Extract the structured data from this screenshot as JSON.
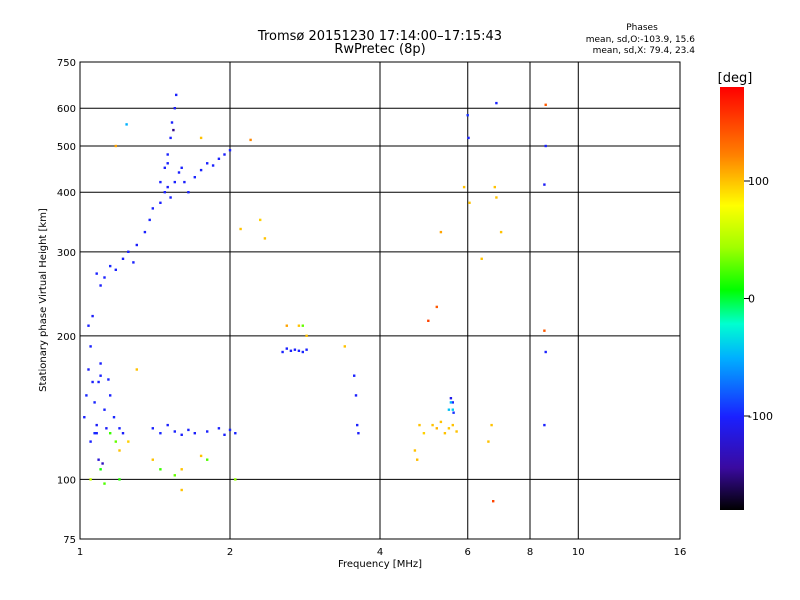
{
  "chart_data": {
    "type": "scatter",
    "title": "Tromsø 20151230 17:14:00–17:15:43",
    "subtitle": "RwPretec (8p)",
    "xlabel": "Frequency [MHz]",
    "ylabel": "Stationary phase Virtual Height [km]",
    "x_scale": "log2",
    "y_scale": "log",
    "xlim": [
      1,
      16
    ],
    "ylim": [
      75,
      750
    ],
    "x_ticks": [
      "1",
      "2",
      "4",
      "6",
      "8",
      "10",
      "16"
    ],
    "y_ticks": [
      "75",
      "100",
      "200",
      "300",
      "400",
      "500",
      "600",
      "750"
    ],
    "grid": true,
    "stats_title": "Phases",
    "stats": [
      "mean, sd,O:-103.9, 15.6",
      "mean, sd,X: 79.4, 23.4"
    ],
    "colorbar": {
      "label": "[deg]",
      "range": [
        -180,
        180
      ],
      "ticks": [
        "100",
        "0",
        "-100"
      ],
      "tick_values": [
        100,
        0,
        -100
      ]
    },
    "series": [
      {
        "points": [
          [
            1.02,
            135,
            -100
          ],
          [
            1.03,
            150,
            -98
          ],
          [
            1.04,
            170,
            -105
          ],
          [
            1.05,
            190,
            -100
          ],
          [
            1.06,
            160,
            -102
          ],
          [
            1.07,
            145,
            -99
          ],
          [
            1.08,
            130,
            -103
          ],
          [
            1.09,
            160,
            -100
          ],
          [
            1.1,
            175,
            -101
          ],
          [
            1.12,
            140,
            -100
          ],
          [
            1.13,
            128,
            -104
          ],
          [
            1.15,
            150,
            -100
          ],
          [
            1.17,
            135,
            -98
          ],
          [
            1.2,
            128,
            -100
          ],
          [
            1.22,
            125,
            -102
          ],
          [
            1.05,
            120,
            -100
          ],
          [
            1.07,
            125,
            -97
          ],
          [
            1.1,
            165,
            -101
          ],
          [
            1.14,
            162,
            -99
          ],
          [
            1.04,
            210,
            -100
          ],
          [
            1.06,
            220,
            -103
          ],
          [
            1.08,
            125,
            -100
          ],
          [
            1.09,
            110,
            -120
          ],
          [
            1.11,
            108,
            -130
          ],
          [
            1.4,
            128,
            -100
          ],
          [
            1.45,
            125,
            -98
          ],
          [
            1.5,
            130,
            -101
          ],
          [
            1.55,
            126,
            -100
          ],
          [
            1.6,
            124,
            -102
          ],
          [
            1.65,
            127,
            -100
          ],
          [
            1.7,
            125,
            -103
          ],
          [
            1.8,
            126,
            -100
          ],
          [
            1.9,
            128,
            -100
          ],
          [
            1.95,
            124,
            -101
          ],
          [
            2.0,
            127,
            -100
          ],
          [
            2.05,
            125,
            -99
          ],
          [
            1.08,
            270,
            -100
          ],
          [
            1.1,
            255,
            -102
          ],
          [
            1.12,
            265,
            -100
          ],
          [
            1.15,
            280,
            -98
          ],
          [
            1.18,
            275,
            -100
          ],
          [
            1.22,
            290,
            -101
          ],
          [
            1.25,
            300,
            -100
          ],
          [
            1.28,
            285,
            -100
          ],
          [
            1.3,
            310,
            -102
          ],
          [
            1.35,
            330,
            -100
          ],
          [
            1.38,
            350,
            -99
          ],
          [
            1.4,
            370,
            -100
          ],
          [
            1.45,
            380,
            -101
          ],
          [
            1.48,
            400,
            -100
          ],
          [
            1.5,
            410,
            -103
          ],
          [
            1.52,
            390,
            -100
          ],
          [
            1.55,
            420,
            -100
          ],
          [
            1.58,
            440,
            -101
          ],
          [
            1.6,
            450,
            -100
          ],
          [
            1.62,
            420,
            -102
          ],
          [
            1.65,
            400,
            -100
          ],
          [
            1.7,
            430,
            -99
          ],
          [
            1.75,
            445,
            -100
          ],
          [
            1.8,
            460,
            -101
          ],
          [
            1.85,
            455,
            -100
          ],
          [
            1.9,
            470,
            -100
          ],
          [
            1.95,
            480,
            -102
          ],
          [
            2.0,
            490,
            -100
          ],
          [
            1.5,
            480,
            -100
          ],
          [
            1.52,
            520,
            -101
          ],
          [
            1.53,
            560,
            -100
          ],
          [
            1.55,
            600,
            -105
          ],
          [
            1.56,
            640,
            -100
          ],
          [
            1.54,
            540,
            -150
          ],
          [
            1.5,
            460,
            -100
          ],
          [
            1.48,
            450,
            -101
          ],
          [
            1.45,
            420,
            -100
          ],
          [
            2.55,
            185,
            -100
          ],
          [
            2.6,
            188,
            -101
          ],
          [
            2.65,
            186,
            -100
          ],
          [
            2.7,
            187,
            -102
          ],
          [
            2.75,
            186,
            -100
          ],
          [
            2.8,
            185,
            -99
          ],
          [
            2.85,
            187,
            -100
          ],
          [
            3.55,
            165,
            -100
          ],
          [
            3.58,
            150,
            -101
          ],
          [
            3.6,
            130,
            -100
          ],
          [
            3.62,
            125,
            -102
          ],
          [
            5.55,
            148,
            -110
          ],
          [
            5.6,
            145,
            -100
          ],
          [
            5.62,
            138,
            -95
          ],
          [
            6.85,
            615,
            -100
          ],
          [
            8.6,
            500,
            -100
          ],
          [
            8.55,
            415,
            -105
          ],
          [
            8.6,
            185,
            -100
          ],
          [
            8.55,
            130,
            -100
          ],
          [
            6.0,
            580,
            -95
          ],
          [
            6.02,
            520,
            -100
          ]
        ]
      },
      {
        "points": [
          [
            1.3,
            170,
            100
          ],
          [
            1.25,
            120,
            95
          ],
          [
            1.18,
            500,
            110
          ],
          [
            1.75,
            520,
            100
          ],
          [
            2.2,
            515,
            120
          ],
          [
            2.1,
            335,
            100
          ],
          [
            2.3,
            350,
            95
          ],
          [
            2.35,
            320,
            100
          ],
          [
            2.6,
            210,
            110
          ],
          [
            2.75,
            210,
            100
          ],
          [
            2.85,
            200,
            100
          ],
          [
            3.4,
            190,
            100
          ],
          [
            4.8,
            130,
            100
          ],
          [
            4.9,
            125,
            95
          ],
          [
            5.1,
            130,
            100
          ],
          [
            5.2,
            128,
            105
          ],
          [
            5.3,
            132,
            100
          ],
          [
            5.4,
            125,
            100
          ],
          [
            5.5,
            128,
            98
          ],
          [
            5.6,
            130,
            100
          ],
          [
            5.7,
            126,
            100
          ],
          [
            4.7,
            115,
            100
          ],
          [
            4.75,
            110,
            102
          ],
          [
            5.9,
            410,
            100
          ],
          [
            6.05,
            380,
            100
          ],
          [
            6.4,
            290,
            100
          ],
          [
            6.6,
            120,
            100
          ],
          [
            6.7,
            130,
            100
          ],
          [
            6.8,
            410,
            100
          ],
          [
            6.85,
            390,
            100
          ],
          [
            7.0,
            330,
            100
          ],
          [
            5.3,
            330,
            110
          ],
          [
            5.2,
            230,
            140
          ],
          [
            5.0,
            215,
            150
          ],
          [
            6.75,
            90,
            150
          ],
          [
            8.6,
            610,
            140
          ],
          [
            8.55,
            205,
            140
          ],
          [
            1.2,
            115,
            100
          ],
          [
            1.4,
            110,
            100
          ],
          [
            1.6,
            105,
            100
          ],
          [
            1.75,
            112,
            100
          ],
          [
            1.6,
            95,
            100
          ],
          [
            1.05,
            100,
            60
          ]
        ]
      },
      {
        "points": [
          [
            1.15,
            125,
            20
          ],
          [
            1.18,
            120,
            30
          ],
          [
            1.1,
            105,
            10
          ],
          [
            1.12,
            98,
            25
          ],
          [
            1.2,
            100,
            15
          ],
          [
            1.45,
            105,
            20
          ],
          [
            1.55,
            102,
            30
          ],
          [
            1.8,
            110,
            25
          ],
          [
            2.05,
            100,
            40
          ],
          [
            5.6,
            140,
            -40
          ],
          [
            5.55,
            145,
            -50
          ],
          [
            5.5,
            140,
            -45
          ],
          [
            1.24,
            555,
            -50
          ],
          [
            2.8,
            210,
            30
          ]
        ]
      }
    ]
  }
}
